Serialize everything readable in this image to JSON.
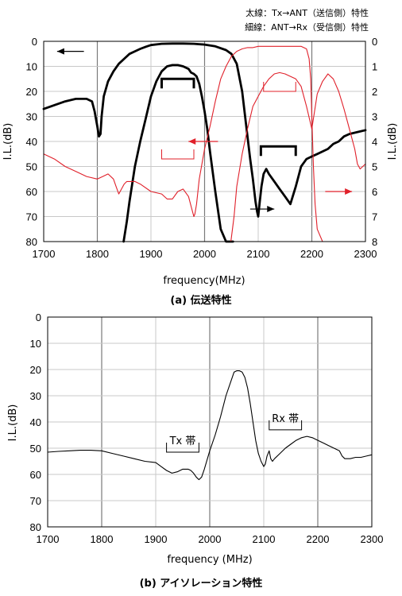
{
  "chart_data": [
    {
      "type": "line",
      "caption": "(a)  伝送特性",
      "notes": [
        "太線：Tx→ANT（送信側）特性",
        "細線：ANT→Rx（受信側）特性"
      ],
      "xlabel": "frequency(MHz)",
      "ylabel_left": "I.L.(dB)",
      "ylabel_right": "I.L.(dB)",
      "xlim": [
        1700,
        2300
      ],
      "ylim_left": [
        0,
        80
      ],
      "ylim_right": [
        0,
        8
      ],
      "y_inverted": true,
      "x_ticks": [
        "1700",
        "1800",
        "1900",
        "2000",
        "2100",
        "2200",
        "2300"
      ],
      "y_ticks_left": [
        "0",
        "10",
        "20",
        "30",
        "40",
        "50",
        "60",
        "70",
        "80"
      ],
      "y_ticks_right": [
        "0",
        "1",
        "2",
        "3",
        "4",
        "5",
        "6",
        "7",
        "8"
      ],
      "grid": true,
      "series": [
        {
          "line_style": "thick",
          "color": "#000000",
          "x": [
            1700,
            1720,
            1740,
            1760,
            1780,
            1790,
            1795,
            1800,
            1803,
            1806,
            1808,
            1812,
            1820,
            1830,
            1840,
            1850,
            1860,
            1870,
            1880,
            1890,
            1900,
            1920,
            1940,
            1960,
            1980,
            2000,
            2020,
            2040,
            2050,
            2060,
            2070,
            2080,
            2085,
            2090,
            2095,
            2098,
            2100,
            2103,
            2106,
            2110,
            2115,
            2120,
            2130,
            2140,
            2150,
            2160,
            2170,
            2180,
            2190,
            2200,
            2210,
            2220,
            2230,
            2240,
            2250,
            2260,
            2270,
            2280,
            2290,
            2300
          ],
          "y": [
            27,
            25.5,
            24,
            23,
            23,
            24,
            28,
            34,
            38,
            37,
            30,
            22,
            16,
            12,
            9,
            7,
            5,
            4,
            3,
            2.2,
            1.5,
            1,
            0.9,
            0.9,
            1,
            1.3,
            2,
            3.5,
            5,
            9,
            20,
            38,
            47,
            55,
            64,
            68,
            70,
            64,
            58,
            53,
            51,
            53,
            56,
            59,
            62,
            65,
            58,
            50,
            47,
            46,
            45,
            44,
            43,
            41,
            40,
            38,
            37,
            36.5,
            36,
            35.5
          ]
        },
        {
          "line_style": "thick",
          "color": "#000000",
          "x": [
            1849,
            1855,
            1860,
            1870,
            1880,
            1890,
            1900,
            1910,
            1920,
            1930,
            1940,
            1950,
            1960,
            1970,
            1975,
            1980,
            1985,
            1990,
            1995,
            2000,
            2005,
            2010,
            2020,
            2030,
            2040,
            2045,
            2050,
            2053
          ],
          "y": [
            80,
            72,
            64,
            50,
            40,
            31,
            22,
            16,
            12,
            10,
            9.5,
            9.5,
            10,
            11,
            12.5,
            13,
            14,
            17,
            22,
            28,
            35,
            44,
            60,
            75,
            80,
            80,
            80,
            80
          ]
        },
        {
          "line_style": "thin",
          "color": "#e0202a",
          "x": [
            1700,
            1720,
            1740,
            1760,
            1780,
            1800,
            1810,
            1820,
            1830,
            1835,
            1840,
            1845,
            1850,
            1855,
            1860,
            1870,
            1880,
            1900,
            1920,
            1930,
            1940,
            1950,
            1960,
            1970,
            1975,
            1980,
            1982,
            1985,
            1990,
            2000,
            2010,
            2020,
            2030,
            2040,
            2050,
            2060,
            2070,
            2080,
            2090,
            2100,
            2120,
            2140,
            2160,
            2180,
            2190,
            2195,
            2198,
            2200,
            2203,
            2206,
            2210,
            2220,
            2225
          ],
          "y": [
            4.5,
            4.7,
            5,
            5.2,
            5.4,
            5.5,
            5.4,
            5.3,
            5.5,
            5.8,
            6.1,
            5.9,
            5.7,
            5.6,
            5.6,
            5.6,
            5.7,
            6,
            6.1,
            6.3,
            6.3,
            6,
            5.9,
            6.2,
            6.6,
            7,
            6.9,
            6.5,
            5.5,
            4.3,
            3.4,
            2.4,
            1.5,
            1,
            0.6,
            0.4,
            0.3,
            0.25,
            0.25,
            0.2,
            0.2,
            0.2,
            0.2,
            0.2,
            0.3,
            0.7,
            1.5,
            3,
            5,
            6.5,
            7.5,
            8,
            8
          ]
        },
        {
          "line_style": "thin",
          "color": "#e0202a",
          "x": [
            2049,
            2055,
            2060,
            2070,
            2080,
            2090,
            2100,
            2110,
            2120,
            2130,
            2140,
            2150,
            2160,
            2170,
            2180,
            2190,
            2200,
            2210,
            2220,
            2230,
            2240,
            2250,
            2260,
            2270,
            2280,
            2285,
            2290,
            2295,
            2300
          ],
          "y": [
            8,
            7,
            5.8,
            4.5,
            3.5,
            2.6,
            2.2,
            1.8,
            1.5,
            1.3,
            1.25,
            1.3,
            1.4,
            1.5,
            1.8,
            2.6,
            3.5,
            2.1,
            1.6,
            1.3,
            1.5,
            2,
            2.7,
            3.5,
            4.3,
            4.9,
            5.1,
            5,
            4.9
          ]
        }
      ],
      "band_markers": [
        {
          "color": "#000000",
          "x": [
            1920,
            1980
          ],
          "y": 15,
          "direction": "up"
        },
        {
          "color": "#000000",
          "x": [
            2105,
            2170
          ],
          "y": 42,
          "direction": "up"
        },
        {
          "color": "#e0202a",
          "x": [
            1920,
            1980
          ],
          "y": 47,
          "direction": "down"
        },
        {
          "color": "#e0202a",
          "x": [
            2110,
            2170
          ],
          "y": 20,
          "direction": "down"
        }
      ],
      "arrows": [
        {
          "color": "#000000",
          "from": [
            1775,
            4
          ],
          "to": [
            1725,
            4
          ]
        },
        {
          "color": "#e0202a",
          "from": [
            2025,
            4
          ],
          "to": [
            1970,
            4
          ]
        },
        {
          "color": "#000000",
          "from": [
            2085,
            67
          ],
          "to": [
            2130,
            67
          ]
        },
        {
          "color": "#e0202a",
          "from": [
            2225,
            6
          ],
          "to": [
            2275,
            6
          ]
        }
      ]
    },
    {
      "type": "line",
      "caption": "(b)  アイソレーション特性",
      "xlabel": "frequency (MHz)",
      "ylabel": "I.L.(dB)",
      "xlim": [
        1700,
        2300
      ],
      "ylim": [
        0,
        80
      ],
      "y_inverted": true,
      "x_ticks": [
        "1700",
        "1800",
        "1900",
        "2000",
        "2100",
        "2200",
        "2300"
      ],
      "y_ticks": [
        "0",
        "10",
        "20",
        "30",
        "40",
        "50",
        "60",
        "70",
        "80"
      ],
      "grid": true,
      "annotations": [
        {
          "text": "Tx 帯",
          "x": [
            1920,
            1980
          ],
          "y": 51.5
        },
        {
          "text": "Rx 帯",
          "x": [
            2110,
            2170
          ],
          "y": 43
        }
      ],
      "series": [
        {
          "line_style": "thin",
          "color": "#000000",
          "x": [
            1700,
            1720,
            1740,
            1760,
            1780,
            1800,
            1820,
            1840,
            1860,
            1880,
            1900,
            1910,
            1920,
            1930,
            1940,
            1950,
            1960,
            1965,
            1970,
            1975,
            1980,
            1985,
            1990,
            2000,
            2010,
            2020,
            2030,
            2040,
            2045,
            2050,
            2055,
            2060,
            2065,
            2070,
            2075,
            2080,
            2085,
            2090,
            2095,
            2100,
            2103,
            2106,
            2110,
            2113,
            2116,
            2120,
            2130,
            2140,
            2150,
            2160,
            2170,
            2180,
            2190,
            2200,
            2210,
            2220,
            2230,
            2240,
            2245,
            2250,
            2260,
            2270,
            2280,
            2290,
            2300
          ],
          "y": [
            51.5,
            51.2,
            51,
            50.8,
            50.8,
            51,
            52,
            53,
            54,
            55,
            55.5,
            57,
            58.5,
            59.5,
            59,
            58,
            58,
            58.5,
            59.5,
            61,
            62,
            61,
            58,
            51,
            45,
            38,
            30,
            24,
            21,
            20.5,
            20.5,
            21,
            23,
            27,
            33,
            40,
            47,
            52,
            55,
            57,
            56,
            53,
            51,
            54,
            55,
            54,
            52,
            50,
            48.5,
            47,
            46,
            45.5,
            46,
            47,
            48,
            49,
            50,
            51,
            53,
            54,
            54,
            53.5,
            53.5,
            53,
            52.5
          ]
        }
      ],
      "band_markers": [
        {
          "color": "#000000",
          "x": [
            1920,
            1980
          ],
          "y": 51.5,
          "direction": "down"
        },
        {
          "color": "#000000",
          "x": [
            2110,
            2170
          ],
          "y": 43,
          "direction": "down"
        }
      ]
    }
  ]
}
